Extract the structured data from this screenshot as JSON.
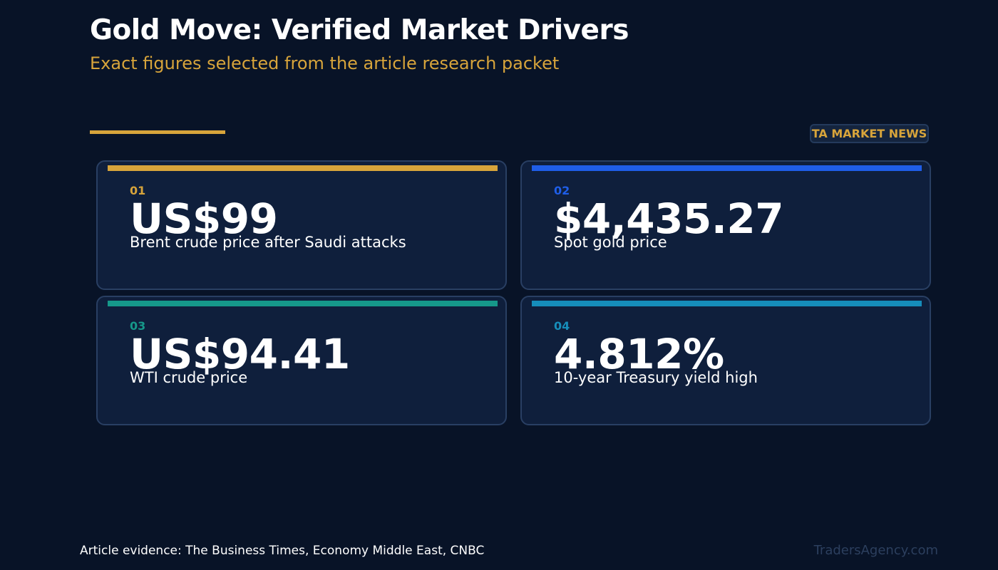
{
  "header": {
    "title": "Gold Move: Verified Market Drivers",
    "subtitle": "Exact figures selected from the article research packet",
    "badge": "TA MARKET NEWS"
  },
  "colors": {
    "background": "#081327",
    "gold": "#d7a43b",
    "blue": "#1f5ee8",
    "teal": "#16988a",
    "cyan": "#168dba"
  },
  "cards": [
    {
      "index": "01",
      "value": "US$99",
      "label": "Brent crude price after Saudi attacks",
      "color": "#d7a43b"
    },
    {
      "index": "02",
      "value": "$4,435.27",
      "label": "Spot gold price",
      "color": "#1f5ee8"
    },
    {
      "index": "03",
      "value": "US$94.41",
      "label": "WTI crude price",
      "color": "#16988a"
    },
    {
      "index": "04",
      "value": "4.812%",
      "label": "10-year Treasury yield high",
      "color": "#168dba"
    }
  ],
  "footer": {
    "source": "Article evidence: The Business Times, Economy Middle East, CNBC",
    "brand": "TradersAgency.com"
  }
}
